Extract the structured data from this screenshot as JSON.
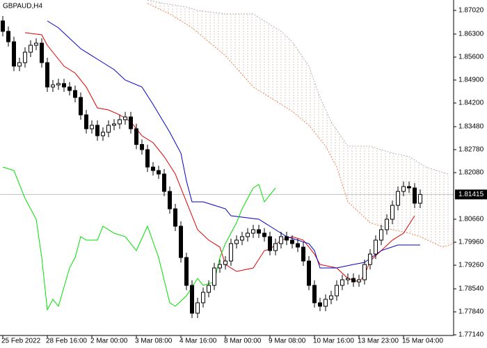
{
  "chart_data": {
    "type": "candlestick",
    "title": "GBPAUD,H4",
    "categories": [
      "25 Feb 2022",
      null,
      null,
      null,
      null,
      null,
      null,
      null,
      "28 Feb 16:00",
      null,
      null,
      null,
      null,
      null,
      null,
      null,
      "2 Mar 00:00",
      null,
      null,
      null,
      null,
      null,
      null,
      null,
      "3 Mar 08:00",
      null,
      null,
      null,
      null,
      null,
      null,
      null,
      "4 Mar 16:00",
      null,
      null,
      null,
      null,
      null,
      null,
      null,
      "8 Mar 00:00",
      null,
      null,
      null,
      null,
      null,
      null,
      null,
      "9 Mar 08:00",
      null,
      null,
      null,
      null,
      null,
      null,
      null,
      "10 Mar 16:00",
      null,
      null,
      null,
      null,
      null,
      null,
      null,
      "13 Mar 23:00",
      null,
      null,
      null,
      null,
      null,
      null,
      null,
      "15 Mar 04:00",
      null,
      null,
      null
    ],
    "open": [
      1.86702,
      1.86384,
      1.86066,
      1.85324,
      1.8543,
      1.85748,
      1.8596,
      1.86024,
      1.8543,
      1.84688,
      1.84752,
      1.84794,
      1.84688,
      1.84582,
      1.8437,
      1.8384,
      1.83416,
      1.83522,
      1.83204,
      1.8331,
      1.83522,
      1.83564,
      1.83692,
      1.83776,
      1.83416,
      1.82938,
      1.8278,
      1.8225,
      1.82144,
      1.82038,
      1.81508,
      1.80978,
      1.80448,
      1.79494,
      1.78646,
      1.77798,
      1.78116,
      1.78434,
      1.78646,
      1.79176,
      1.79282,
      1.79388,
      1.79918,
      1.80024,
      1.8013,
      1.80236,
      1.80342,
      1.80236,
      1.8013,
      1.79706,
      1.79918,
      1.8013,
      1.80024,
      1.79918,
      1.79812,
      1.79388,
      1.78646,
      1.78116,
      1.7801,
      1.78222,
      1.78328,
      1.78646,
      1.78816,
      1.78858,
      1.78752,
      1.78816,
      1.79282,
      1.796,
      1.80024,
      1.80342,
      1.8066,
      1.81084,
      1.81508,
      1.81656,
      1.81614,
      1.81148
    ],
    "high": [
      1.8685,
      1.8653,
      1.8622,
      1.8558,
      1.859,
      1.8611,
      1.8617,
      1.8617,
      1.8558,
      1.849,
      1.8494,
      1.8494,
      1.8484,
      1.8473,
      1.8452,
      1.8399,
      1.8367,
      1.8367,
      1.8346,
      1.8367,
      1.8371,
      1.8384,
      1.8393,
      1.8393,
      1.8357,
      1.8309,
      1.8293,
      1.824,
      1.8229,
      1.8219,
      1.8166,
      1.8113,
      1.806,
      1.7964,
      1.788,
      1.7827,
      1.7858,
      1.788,
      1.7933,
      1.7943,
      1.7954,
      1.8007,
      1.8017,
      1.8028,
      1.8039,
      1.8049,
      1.8049,
      1.8039,
      1.8028,
      1.8007,
      1.8028,
      1.8028,
      1.8017,
      1.8007,
      1.7996,
      1.7954,
      1.788,
      1.7827,
      1.7837,
      1.7848,
      1.788,
      1.7897,
      1.7901,
      1.7901,
      1.7897,
      1.7943,
      1.7975,
      1.8017,
      1.8049,
      1.8081,
      1.8123,
      1.8166,
      1.8181,
      1.8181,
      1.8176,
      1.8157
    ],
    "low": [
      1.8623,
      1.8592,
      1.8517,
      1.8517,
      1.8528,
      1.856,
      1.8581,
      1.8528,
      1.8454,
      1.8454,
      1.846,
      1.8454,
      1.8443,
      1.8422,
      1.8369,
      1.8327,
      1.8327,
      1.8305,
      1.8305,
      1.8316,
      1.8337,
      1.8341,
      1.8354,
      1.8327,
      1.8279,
      1.8263,
      1.821,
      1.8199,
      1.8189,
      1.8136,
      1.8083,
      1.803,
      1.7934,
      1.785,
      1.7765,
      1.7765,
      1.7797,
      1.7828,
      1.785,
      1.7903,
      1.7913,
      1.7924,
      1.7977,
      1.7987,
      1.7998,
      1.8009,
      1.8009,
      1.7998,
      1.7956,
      1.7956,
      1.7977,
      1.7987,
      1.7977,
      1.7966,
      1.7924,
      1.785,
      1.7797,
      1.7786,
      1.7786,
      1.7807,
      1.7818,
      1.785,
      1.7867,
      1.786,
      1.786,
      1.7867,
      1.7913,
      1.7945,
      1.7987,
      1.8019,
      1.8051,
      1.8093,
      1.8136,
      1.8146,
      1.81,
      1.81
    ],
    "close": [
      1.86384,
      1.86066,
      1.85324,
      1.8543,
      1.85748,
      1.8596,
      1.86024,
      1.8543,
      1.84688,
      1.84752,
      1.84794,
      1.84688,
      1.84582,
      1.8437,
      1.8384,
      1.83416,
      1.83522,
      1.83204,
      1.8331,
      1.83522,
      1.83564,
      1.83692,
      1.83776,
      1.83416,
      1.82938,
      1.8278,
      1.8225,
      1.82144,
      1.82038,
      1.81508,
      1.80978,
      1.80448,
      1.79494,
      1.78646,
      1.77798,
      1.78116,
      1.78434,
      1.78646,
      1.79176,
      1.79282,
      1.79388,
      1.79918,
      1.80024,
      1.8013,
      1.80236,
      1.80342,
      1.80236,
      1.8013,
      1.79706,
      1.79918,
      1.8013,
      1.80024,
      1.79918,
      1.79812,
      1.79388,
      1.78646,
      1.78116,
      1.7801,
      1.78222,
      1.78328,
      1.78646,
      1.78816,
      1.78858,
      1.78752,
      1.78816,
      1.79282,
      1.796,
      1.80024,
      1.80342,
      1.8066,
      1.81084,
      1.81508,
      1.81656,
      1.81614,
      1.81148,
      1.81415
    ],
    "up_color": "#ffffff",
    "down_color": "#000000",
    "ylim": [
      1.7712,
      1.87338
    ],
    "yticks": [
      {
        "value": 1.8702,
        "label": "1.87020"
      },
      {
        "value": 1.863,
        "label": "1.86300"
      },
      {
        "value": 1.856,
        "label": "1.85600"
      },
      {
        "value": 1.849,
        "label": "1.84900"
      },
      {
        "value": 1.842,
        "label": "1.84200"
      },
      {
        "value": 1.8348,
        "label": "1.83480"
      },
      {
        "value": 1.8278,
        "label": "1.82780"
      },
      {
        "value": 1.8208,
        "label": "1.82080"
      },
      {
        "value": 1.8066,
        "label": "1.80660"
      },
      {
        "value": 1.7996,
        "label": "1.79960"
      },
      {
        "value": 1.7926,
        "label": "1.79260"
      },
      {
        "value": 1.7854,
        "label": "1.78540"
      },
      {
        "value": 1.7784,
        "label": "1.77840"
      },
      {
        "value": 1.7714,
        "label": "1.77140"
      }
    ],
    "current_price": 1.81415,
    "lines": [
      {
        "color": "#e00000",
        "x": [
          4,
          7,
          8,
          11,
          13,
          15,
          17,
          19,
          21,
          23,
          25,
          27,
          29,
          31,
          33,
          35,
          37,
          39,
          40,
          42,
          45,
          47,
          48,
          50,
          52,
          54,
          56,
          57,
          60,
          62,
          64,
          65,
          66,
          68,
          70,
          72,
          74
        ],
        "values": [
          1.86342,
          1.86278,
          1.8596,
          1.85324,
          1.85112,
          1.84688,
          1.84052,
          1.83988,
          1.8384,
          1.83628,
          1.83204,
          1.82992,
          1.82568,
          1.82038,
          1.8119,
          1.80342,
          1.80024,
          1.79812,
          1.79282,
          1.7907,
          1.79176,
          1.79706,
          1.79748,
          1.80024,
          1.8013,
          1.80024,
          1.796,
          1.79282,
          1.79176,
          1.78858,
          1.78752,
          1.78964,
          1.79388,
          1.79706,
          1.80024,
          1.80236,
          1.80766
        ]
      },
      {
        "color": "#0000c8",
        "x": [
          8,
          10,
          14,
          17,
          20,
          22,
          25,
          27,
          30,
          32,
          33,
          34,
          36,
          38,
          40,
          41,
          46,
          48,
          51,
          55,
          56,
          57,
          60,
          63,
          65,
          68,
          71,
          75
        ],
        "values": [
          1.86702,
          1.8649,
          1.85854,
          1.85536,
          1.85218,
          1.849,
          1.84688,
          1.84158,
          1.8331,
          1.82674,
          1.81826,
          1.8119,
          1.8119,
          1.81084,
          1.80978,
          1.80766,
          1.8066,
          1.80448,
          1.8013,
          1.79918,
          1.79706,
          1.79176,
          1.79176,
          1.79282,
          1.79346,
          1.79706,
          1.79876,
          1.79876
        ]
      },
      {
        "color": "#00e000",
        "x": [
          0,
          2,
          4,
          6,
          7,
          8,
          9,
          10,
          12,
          13,
          14,
          15,
          17,
          18,
          20,
          22,
          24,
          26,
          28,
          30,
          31,
          33,
          35,
          36,
          38,
          39,
          40,
          42,
          43,
          45,
          46,
          47,
          48,
          49
        ],
        "values": [
          1.8225,
          1.82144,
          1.81296,
          1.8066,
          1.79494,
          1.77904,
          1.78222,
          1.7801,
          1.79176,
          1.79494,
          1.8013,
          1.80024,
          1.80024,
          1.80448,
          1.80236,
          1.8013,
          1.79706,
          1.80448,
          1.79494,
          1.78116,
          1.7801,
          1.78328,
          1.78858,
          1.78646,
          1.78752,
          1.79494,
          1.79918,
          1.80554,
          1.80978,
          1.81614,
          1.8172,
          1.8119,
          1.81402,
          1.81614
        ]
      }
    ],
    "cloud": {
      "color": "#d9c9c0",
      "span_a": {
        "color": "#f08050",
        "x": [
          26,
          30,
          34,
          37,
          40,
          45,
          48,
          52,
          55,
          58,
          60,
          62,
          64,
          66,
          70,
          73,
          75,
          79,
          81
        ],
        "values": [
          1.87232,
          1.86914,
          1.8649,
          1.86066,
          1.85642,
          1.84688,
          1.8437,
          1.83946,
          1.83522,
          1.82886,
          1.8225,
          1.8119,
          1.80872,
          1.80554,
          1.80342,
          1.80236,
          1.8013,
          1.79812,
          1.79918
        ]
      },
      "span_b": {
        "color": "#b0b0b0",
        "x": [
          26,
          29,
          33,
          35,
          40,
          45,
          50,
          52,
          55,
          57,
          59,
          62,
          66,
          70,
          73,
          76,
          80
        ],
        "values": [
          1.87338,
          1.87232,
          1.87126,
          1.8702,
          1.86914,
          1.86914,
          1.86384,
          1.86066,
          1.85324,
          1.8437,
          1.83628,
          1.82886,
          1.82886,
          1.82674,
          1.82568,
          1.8225,
          1.82038
        ]
      }
    }
  }
}
